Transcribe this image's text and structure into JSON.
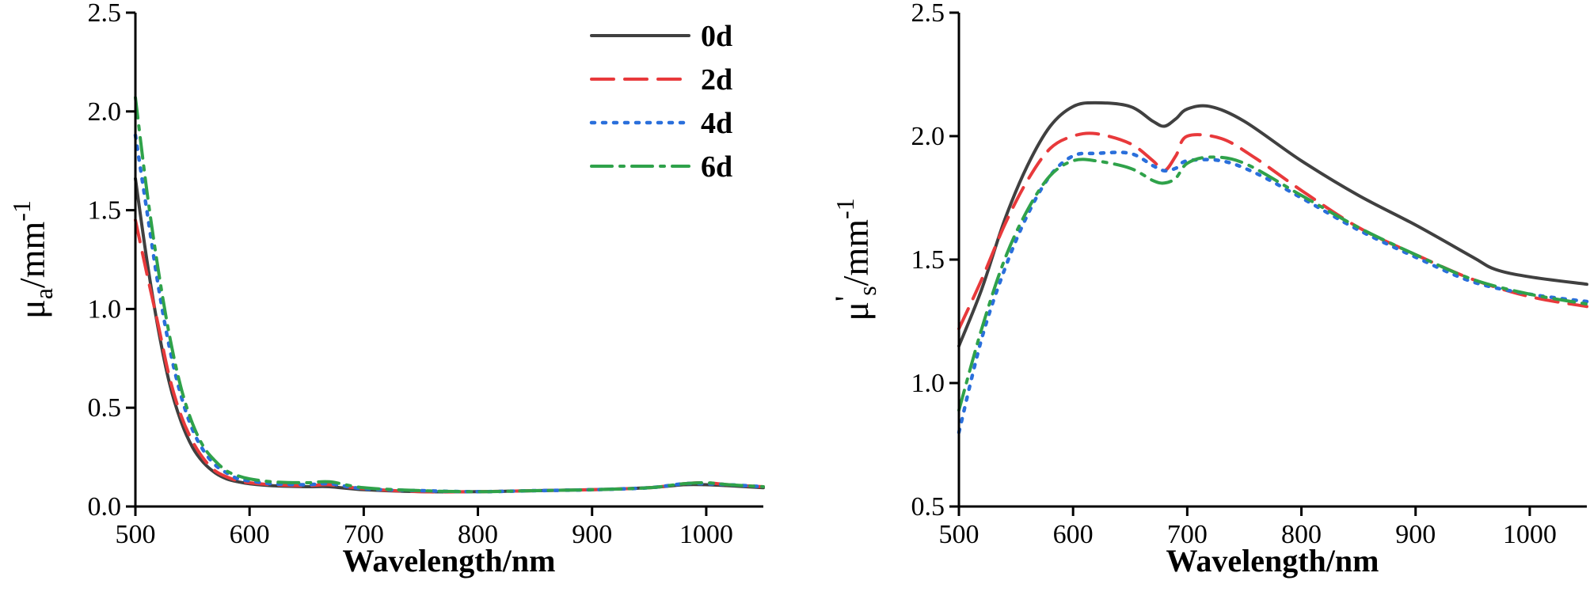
{
  "chart_data": [
    {
      "type": "line",
      "title": "",
      "xlabel": "Wavelength/nm",
      "ylabel": {
        "main": "μ",
        "sub": "a",
        "unit": "/mm",
        "sup": "-1"
      },
      "xlim": [
        500,
        1050
      ],
      "ylim": [
        0.0,
        2.5
      ],
      "xticks": [
        500,
        600,
        700,
        800,
        900,
        1000
      ],
      "yticks": [
        0.0,
        0.5,
        1.0,
        1.5,
        2.0,
        2.5
      ],
      "xtick_labels": [
        "500",
        "600",
        "700",
        "800",
        "900",
        "1000"
      ],
      "ytick_labels": [
        "0.0",
        "0.5",
        "1.0",
        "1.5",
        "2.0",
        "2.5"
      ],
      "grid": false,
      "legend_position": "top-right",
      "series": [
        {
          "name": "0d",
          "color": "#404040",
          "style": "solid",
          "points": [
            [
              500,
              1.66
            ],
            [
              510,
              1.25
            ],
            [
              520,
              0.9
            ],
            [
              530,
              0.62
            ],
            [
              540,
              0.43
            ],
            [
              550,
              0.3
            ],
            [
              560,
              0.22
            ],
            [
              570,
              0.17
            ],
            [
              580,
              0.14
            ],
            [
              590,
              0.125
            ],
            [
              600,
              0.115
            ],
            [
              620,
              0.105
            ],
            [
              650,
              0.1
            ],
            [
              670,
              0.1
            ],
            [
              700,
              0.085
            ],
            [
              750,
              0.075
            ],
            [
              800,
              0.075
            ],
            [
              850,
              0.08
            ],
            [
              900,
              0.085
            ],
            [
              950,
              0.095
            ],
            [
              980,
              0.11
            ],
            [
              1000,
              0.11
            ],
            [
              1020,
              0.105
            ],
            [
              1050,
              0.095
            ]
          ]
        },
        {
          "name": "2d",
          "color": "#e8393b",
          "style": "dashed",
          "points": [
            [
              500,
              1.45
            ],
            [
              510,
              1.18
            ],
            [
              520,
              0.92
            ],
            [
              530,
              0.65
            ],
            [
              540,
              0.46
            ],
            [
              550,
              0.33
            ],
            [
              560,
              0.24
            ],
            [
              570,
              0.18
            ],
            [
              580,
              0.15
            ],
            [
              590,
              0.13
            ],
            [
              600,
              0.12
            ],
            [
              620,
              0.11
            ],
            [
              650,
              0.105
            ],
            [
              670,
              0.11
            ],
            [
              700,
              0.09
            ],
            [
              750,
              0.075
            ],
            [
              800,
              0.075
            ],
            [
              850,
              0.08
            ],
            [
              900,
              0.085
            ],
            [
              950,
              0.095
            ],
            [
              980,
              0.115
            ],
            [
              1000,
              0.12
            ],
            [
              1020,
              0.11
            ],
            [
              1050,
              0.1
            ]
          ]
        },
        {
          "name": "4d",
          "color": "#2a6fdb",
          "style": "dotted",
          "points": [
            [
              500,
              1.88
            ],
            [
              510,
              1.5
            ],
            [
              520,
              1.12
            ],
            [
              530,
              0.8
            ],
            [
              540,
              0.56
            ],
            [
              550,
              0.39
            ],
            [
              560,
              0.28
            ],
            [
              570,
              0.21
            ],
            [
              580,
              0.17
            ],
            [
              590,
              0.14
            ],
            [
              600,
              0.13
            ],
            [
              620,
              0.115
            ],
            [
              650,
              0.11
            ],
            [
              670,
              0.115
            ],
            [
              700,
              0.09
            ],
            [
              750,
              0.08
            ],
            [
              800,
              0.075
            ],
            [
              850,
              0.08
            ],
            [
              900,
              0.085
            ],
            [
              950,
              0.095
            ],
            [
              980,
              0.115
            ],
            [
              1000,
              0.115
            ],
            [
              1020,
              0.11
            ],
            [
              1050,
              0.1
            ]
          ]
        },
        {
          "name": "6d",
          "color": "#2fa24a",
          "style": "dashdot",
          "points": [
            [
              500,
              2.07
            ],
            [
              510,
              1.6
            ],
            [
              520,
              1.2
            ],
            [
              530,
              0.86
            ],
            [
              540,
              0.6
            ],
            [
              550,
              0.42
            ],
            [
              560,
              0.3
            ],
            [
              570,
              0.23
            ],
            [
              580,
              0.18
            ],
            [
              590,
              0.155
            ],
            [
              600,
              0.14
            ],
            [
              620,
              0.125
            ],
            [
              650,
              0.12
            ],
            [
              670,
              0.125
            ],
            [
              700,
              0.095
            ],
            [
              750,
              0.08
            ],
            [
              800,
              0.075
            ],
            [
              850,
              0.08
            ],
            [
              900,
              0.085
            ],
            [
              950,
              0.095
            ],
            [
              980,
              0.115
            ],
            [
              1000,
              0.12
            ],
            [
              1020,
              0.11
            ],
            [
              1050,
              0.1
            ]
          ]
        }
      ]
    },
    {
      "type": "line",
      "title": "",
      "xlabel": "Wavelength/nm",
      "ylabel": {
        "main": "μ",
        "sub": "s",
        "prime": "'",
        "unit": "/mm",
        "sup": "-1"
      },
      "xlim": [
        500,
        1050
      ],
      "ylim": [
        0.5,
        2.5
      ],
      "xticks": [
        500,
        600,
        700,
        800,
        900,
        1000
      ],
      "yticks": [
        0.5,
        1.0,
        1.5,
        2.0,
        2.5
      ],
      "xtick_labels": [
        "500",
        "600",
        "700",
        "800",
        "900",
        "1000"
      ],
      "ytick_labels": [
        "0.5",
        "1.0",
        "1.5",
        "2.0",
        "2.5"
      ],
      "grid": false,
      "series": [
        {
          "name": "0d",
          "color": "#404040",
          "style": "solid",
          "points": [
            [
              500,
              1.15
            ],
            [
              520,
              1.38
            ],
            [
              540,
              1.66
            ],
            [
              560,
              1.88
            ],
            [
              580,
              2.04
            ],
            [
              600,
              2.12
            ],
            [
              620,
              2.135
            ],
            [
              650,
              2.12
            ],
            [
              670,
              2.06
            ],
            [
              680,
              2.04
            ],
            [
              690,
              2.07
            ],
            [
              700,
              2.11
            ],
            [
              720,
              2.12
            ],
            [
              750,
              2.06
            ],
            [
              800,
              1.9
            ],
            [
              850,
              1.76
            ],
            [
              900,
              1.64
            ],
            [
              950,
              1.51
            ],
            [
              970,
              1.46
            ],
            [
              1000,
              1.43
            ],
            [
              1050,
              1.4
            ]
          ]
        },
        {
          "name": "2d",
          "color": "#e8393b",
          "style": "dashed",
          "points": [
            [
              500,
              1.22
            ],
            [
              520,
              1.42
            ],
            [
              540,
              1.64
            ],
            [
              560,
              1.82
            ],
            [
              580,
              1.95
            ],
            [
              600,
              2.0
            ],
            [
              620,
              2.01
            ],
            [
              650,
              1.97
            ],
            [
              670,
              1.9
            ],
            [
              680,
              1.86
            ],
            [
              690,
              1.92
            ],
            [
              700,
              2.0
            ],
            [
              730,
              1.99
            ],
            [
              760,
              1.91
            ],
            [
              800,
              1.78
            ],
            [
              850,
              1.63
            ],
            [
              900,
              1.52
            ],
            [
              950,
              1.42
            ],
            [
              1000,
              1.35
            ],
            [
              1050,
              1.31
            ]
          ]
        },
        {
          "name": "4d",
          "color": "#2a6fdb",
          "style": "dotted",
          "points": [
            [
              500,
              0.8
            ],
            [
              520,
              1.18
            ],
            [
              540,
              1.46
            ],
            [
              560,
              1.68
            ],
            [
              580,
              1.84
            ],
            [
              600,
              1.92
            ],
            [
              620,
              1.93
            ],
            [
              650,
              1.93
            ],
            [
              670,
              1.88
            ],
            [
              680,
              1.86
            ],
            [
              690,
              1.87
            ],
            [
              700,
              1.9
            ],
            [
              730,
              1.9
            ],
            [
              760,
              1.85
            ],
            [
              800,
              1.75
            ],
            [
              850,
              1.62
            ],
            [
              900,
              1.51
            ],
            [
              950,
              1.41
            ],
            [
              1000,
              1.36
            ],
            [
              1050,
              1.33
            ]
          ]
        },
        {
          "name": "6d",
          "color": "#2fa24a",
          "style": "dashdot",
          "points": [
            [
              500,
              0.89
            ],
            [
              520,
              1.22
            ],
            [
              540,
              1.5
            ],
            [
              560,
              1.7
            ],
            [
              580,
              1.84
            ],
            [
              600,
              1.9
            ],
            [
              620,
              1.9
            ],
            [
              650,
              1.87
            ],
            [
              670,
              1.82
            ],
            [
              680,
              1.81
            ],
            [
              690,
              1.83
            ],
            [
              700,
              1.89
            ],
            [
              720,
              1.915
            ],
            [
              750,
              1.89
            ],
            [
              800,
              1.76
            ],
            [
              850,
              1.63
            ],
            [
              900,
              1.52
            ],
            [
              950,
              1.42
            ],
            [
              1000,
              1.36
            ],
            [
              1050,
              1.32
            ]
          ]
        }
      ]
    }
  ]
}
